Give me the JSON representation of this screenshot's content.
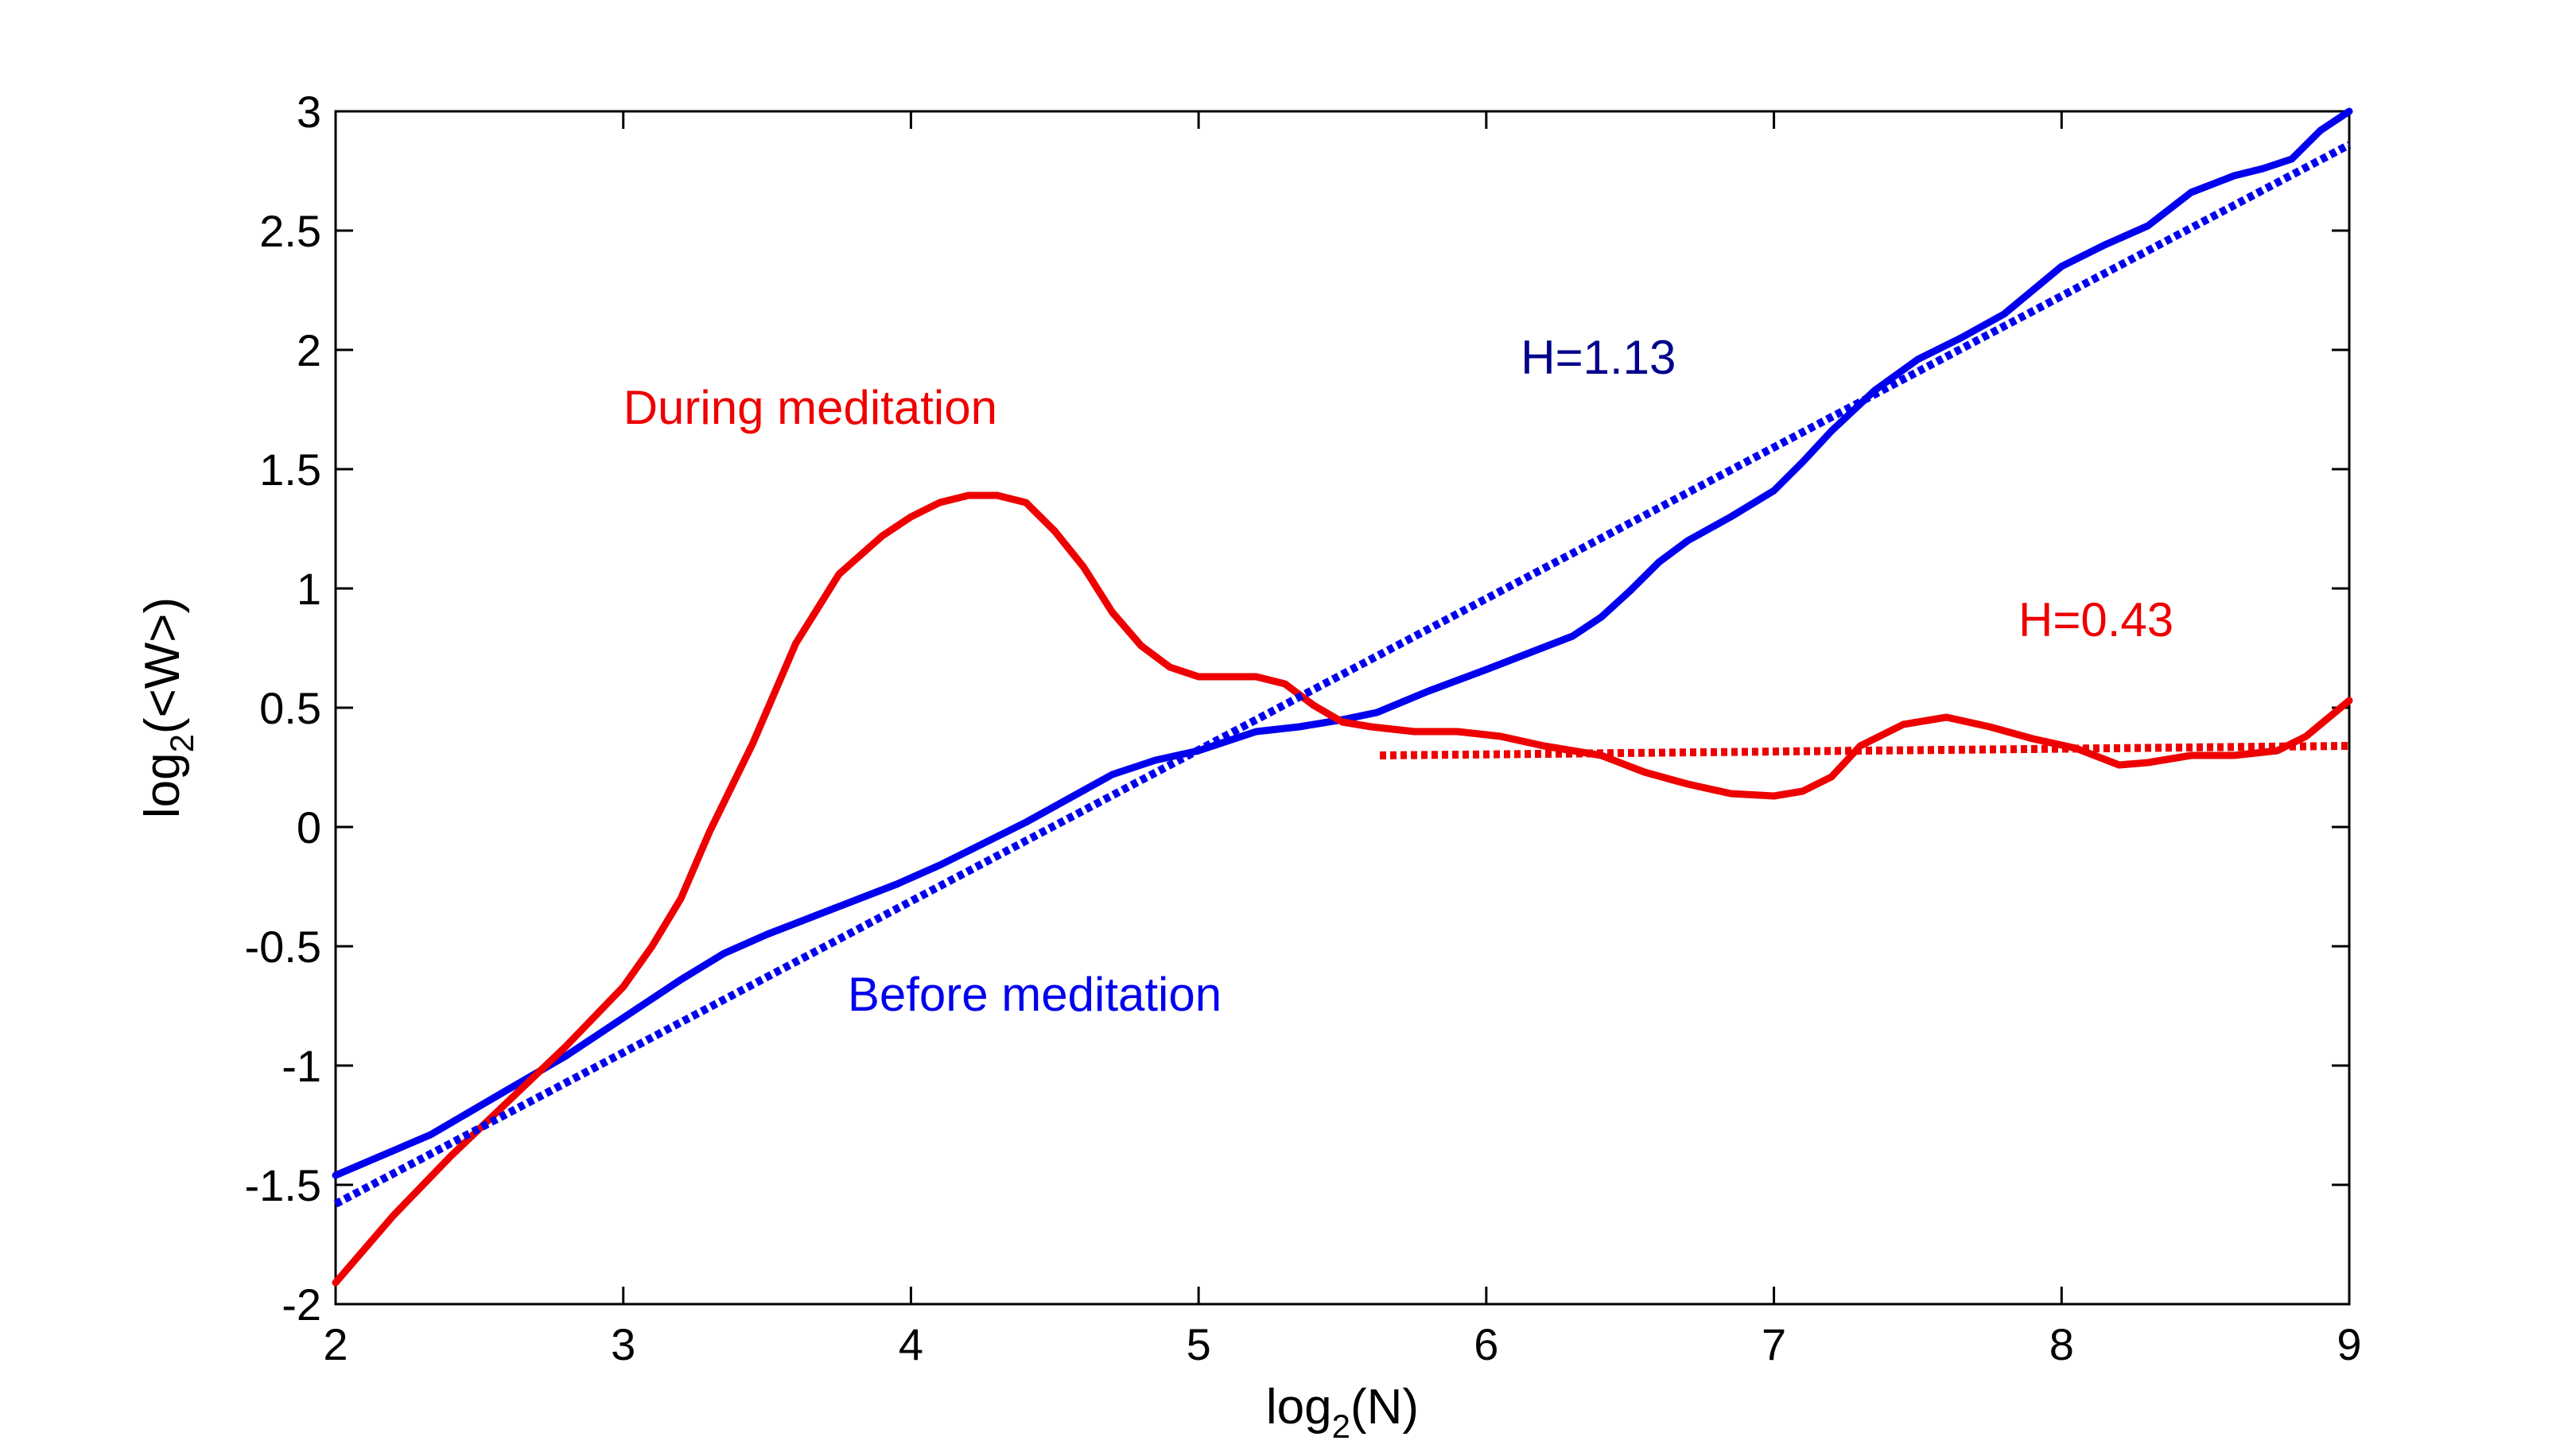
{
  "chart_data": {
    "type": "line",
    "title": "",
    "xlabel": {
      "base": "log",
      "sub": "2",
      "rest": "(N)"
    },
    "ylabel": {
      "base": "log",
      "sub": "2",
      "rest": "(<W>)"
    },
    "xlim": [
      2,
      9
    ],
    "ylim": [
      -2,
      3
    ],
    "xticks": [
      2,
      3,
      4,
      5,
      6,
      7,
      8,
      9
    ],
    "yticks": [
      -2,
      -1.5,
      -1,
      -0.5,
      0,
      0.5,
      1,
      1.5,
      2,
      2.5,
      3
    ],
    "grid": false,
    "series": [
      {
        "name": "Before meditation",
        "color": "#0000ee",
        "style": "solid",
        "x": [
          2.0,
          2.33,
          2.6,
          2.8,
          3.0,
          3.2,
          3.35,
          3.5,
          3.65,
          3.8,
          3.95,
          4.1,
          4.25,
          4.4,
          4.55,
          4.7,
          4.85,
          5.0,
          5.2,
          5.35,
          5.5,
          5.62,
          5.8,
          6.0,
          6.15,
          6.3,
          6.4,
          6.5,
          6.6,
          6.7,
          6.85,
          7.0,
          7.1,
          7.2,
          7.35,
          7.5,
          7.65,
          7.8,
          8.0,
          8.15,
          8.3,
          8.45,
          8.6,
          8.7,
          8.8,
          8.9,
          9.0
        ],
        "y": [
          -1.46,
          -1.29,
          -1.1,
          -0.96,
          -0.8,
          -0.64,
          -0.53,
          -0.45,
          -0.38,
          -0.31,
          -0.24,
          -0.16,
          -0.07,
          0.02,
          0.12,
          0.22,
          0.28,
          0.32,
          0.4,
          0.42,
          0.45,
          0.48,
          0.57,
          0.66,
          0.73,
          0.8,
          0.88,
          0.99,
          1.11,
          1.2,
          1.3,
          1.41,
          1.53,
          1.66,
          1.83,
          1.96,
          2.05,
          2.15,
          2.35,
          2.44,
          2.52,
          2.66,
          2.73,
          2.76,
          2.8,
          2.92,
          3.0
        ]
      },
      {
        "name": "During meditation",
        "color": "#ee0000",
        "style": "solid",
        "x": [
          2.0,
          2.2,
          2.4,
          2.6,
          2.8,
          3.0,
          3.1,
          3.2,
          3.3,
          3.45,
          3.6,
          3.75,
          3.9,
          4.0,
          4.1,
          4.2,
          4.3,
          4.4,
          4.5,
          4.6,
          4.7,
          4.8,
          4.9,
          5.0,
          5.1,
          5.2,
          5.3,
          5.4,
          5.5,
          5.6,
          5.75,
          5.9,
          6.05,
          6.2,
          6.4,
          6.55,
          6.7,
          6.85,
          7.0,
          7.1,
          7.2,
          7.3,
          7.45,
          7.6,
          7.75,
          7.9,
          8.05,
          8.2,
          8.3,
          8.45,
          8.6,
          8.75,
          8.85,
          9.0
        ],
        "y": [
          -1.91,
          -1.63,
          -1.38,
          -1.15,
          -0.92,
          -0.67,
          -0.5,
          -0.3,
          -0.02,
          0.35,
          0.77,
          1.06,
          1.22,
          1.3,
          1.36,
          1.39,
          1.39,
          1.36,
          1.24,
          1.09,
          0.9,
          0.76,
          0.67,
          0.63,
          0.63,
          0.63,
          0.6,
          0.51,
          0.44,
          0.42,
          0.4,
          0.4,
          0.38,
          0.34,
          0.3,
          0.23,
          0.18,
          0.14,
          0.13,
          0.15,
          0.21,
          0.34,
          0.43,
          0.46,
          0.42,
          0.37,
          0.33,
          0.26,
          0.27,
          0.3,
          0.3,
          0.32,
          0.38,
          0.53
        ]
      },
      {
        "name": "Before meditation fit",
        "color": "#0000ee",
        "style": "dotted",
        "x": [
          2.0,
          9.0
        ],
        "y": [
          -1.58,
          2.86
        ]
      },
      {
        "name": "During meditation fit",
        "color": "#ee0000",
        "style": "dotted",
        "x": [
          5.63,
          9.0
        ],
        "y": [
          0.3,
          0.34
        ]
      }
    ],
    "annotations": [
      {
        "text": "During meditation",
        "color": "#ee0000",
        "x": 3.0,
        "y": 1.69
      },
      {
        "text": "H=1.13",
        "color": "#00008b",
        "x": 6.12,
        "y": 1.9
      },
      {
        "text": "H=0.43",
        "color": "#ee0000",
        "x": 7.85,
        "y": 0.8
      },
      {
        "text": "Before meditation",
        "color": "#0000ee",
        "x": 3.78,
        "y": -0.77
      }
    ]
  }
}
